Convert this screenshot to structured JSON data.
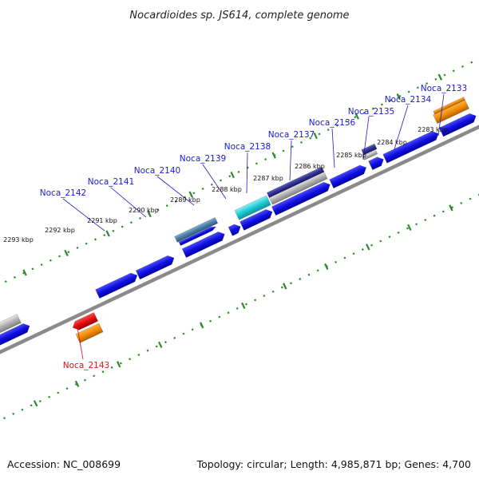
{
  "title": "Nocardioides sp. JS614, complete genome",
  "footer": {
    "accession": "Accession: NC_008699",
    "summary": "Topology: circular; Length: 4,985,871 bp; Genes: 4,700"
  },
  "scale_ticks": [
    "2283 kbp",
    "2284 kbp",
    "2285 kbp",
    "2286 kbp",
    "2287 kbp",
    "2288 kbp",
    "2289 kbp",
    "2290 kbp",
    "2291 kbp",
    "2292 kbp",
    "2293 kbp"
  ],
  "gene_labels": [
    "Noca_2133",
    "Noca_2134",
    "Noca_2135",
    "Noca_2136",
    "Noca_2137",
    "Noca_2138",
    "Noca_2139",
    "Noca_2140",
    "Noca_2141",
    "Noca_2142",
    "Noca_2143"
  ],
  "colors": {
    "forward_gene": "#1010e0",
    "reverse_gene": "#e01010",
    "orange_feature": "#f08c00",
    "cyan_feature": "#20c8d0",
    "grey_feature": "#a8a8a8",
    "label_forward": "#1a1acc",
    "label_reverse": "#d41414",
    "ruler": "#2a8a2a",
    "backbone": "#777777"
  }
}
